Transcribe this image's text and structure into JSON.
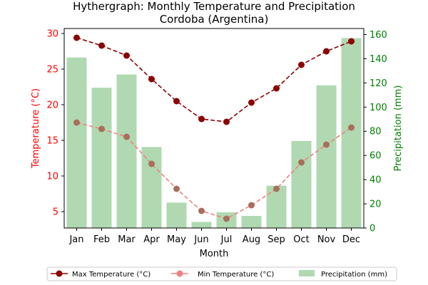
{
  "chart_data": {
    "type": "bar+line",
    "title": "Hythergraph: Monthly Temperature and Precipitation",
    "subtitle": "Cordoba (Argentina)",
    "xlabel": "Month",
    "ylabel_left": "Temperature (°C)",
    "ylabel_right": "Precipitation (mm)",
    "categories": [
      "Jan",
      "Feb",
      "Mar",
      "Apr",
      "May",
      "Jun",
      "Jul",
      "Aug",
      "Sep",
      "Oct",
      "Nov",
      "Dec"
    ],
    "ylim_left": [
      2.7,
      30.7
    ],
    "yticks_left": [
      5,
      10,
      15,
      20,
      25,
      30
    ],
    "ylim_right": [
      0,
      165
    ],
    "yticks_right": [
      0,
      20,
      40,
      60,
      80,
      100,
      120,
      140,
      160
    ],
    "series": [
      {
        "name": "Max Temperature (°C)",
        "kind": "line",
        "axis": "left",
        "color": "#8b0000",
        "dashed": true,
        "values": [
          29.4,
          28.3,
          26.9,
          23.6,
          20.5,
          18.0,
          17.6,
          20.3,
          22.3,
          25.6,
          27.5,
          28.9
        ]
      },
      {
        "name": "Min Temperature (°C)",
        "kind": "line",
        "axis": "left",
        "color": "#f08080",
        "dashed": true,
        "values": [
          17.5,
          16.6,
          15.5,
          11.7,
          8.2,
          5.1,
          4.0,
          5.9,
          8.2,
          11.9,
          14.4,
          16.8
        ]
      },
      {
        "name": "Precipitation (mm)",
        "kind": "bar",
        "axis": "right",
        "color": "#b0d9b1",
        "values": [
          141,
          116,
          127,
          67,
          21,
          5,
          13,
          10,
          35,
          72,
          118,
          157
        ]
      }
    ],
    "colors": {
      "left_axis": "#ff0000",
      "right_axis": "#008000",
      "overlap_marker": "#a86f5c"
    },
    "legend_position": "bottom-center"
  }
}
